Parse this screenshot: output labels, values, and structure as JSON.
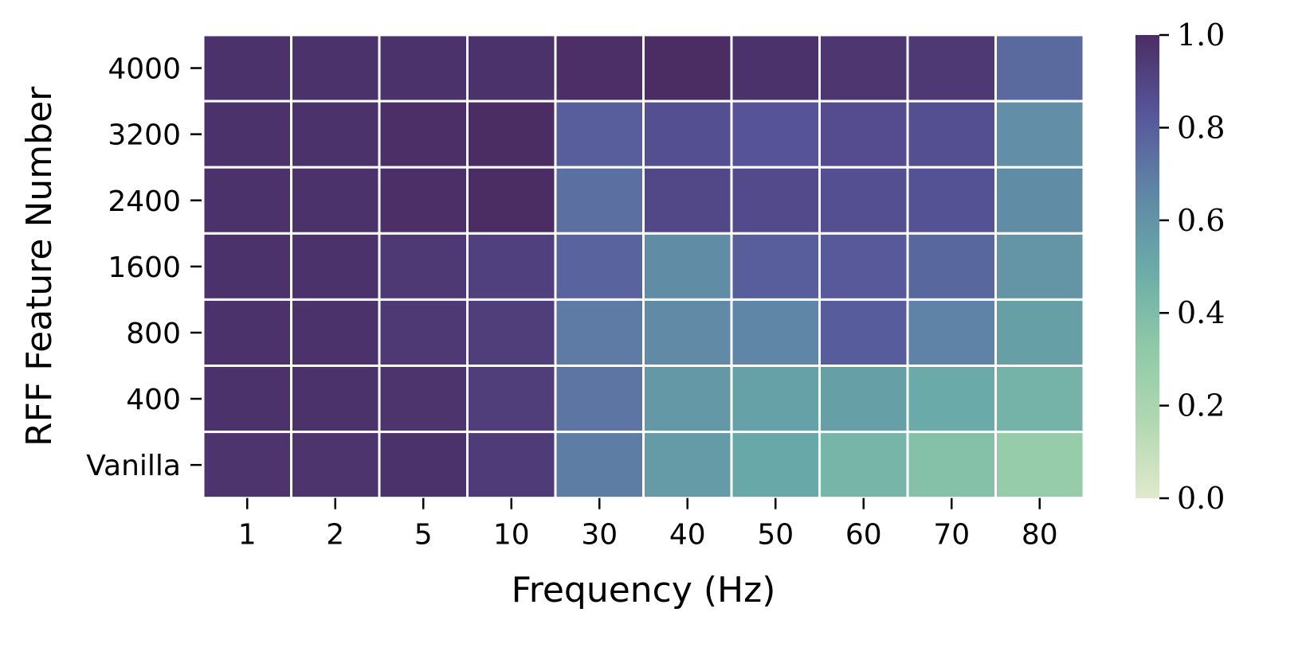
{
  "chart_data": {
    "type": "heatmap",
    "xlabel": "Frequency (Hz)",
    "ylabel": "RFF Feature Number",
    "x_categories": [
      "1",
      "2",
      "5",
      "10",
      "30",
      "40",
      "50",
      "60",
      "70",
      "80"
    ],
    "y_categories": [
      "4000",
      "3200",
      "2400",
      "1600",
      "800",
      "400",
      "Vanilla"
    ],
    "values": [
      [
        0.98,
        0.98,
        0.98,
        0.98,
        0.99,
        1.0,
        0.98,
        0.96,
        0.95,
        0.76
      ],
      [
        0.98,
        0.98,
        0.99,
        1.0,
        0.8,
        0.86,
        0.84,
        0.87,
        0.86,
        0.62
      ],
      [
        0.98,
        0.98,
        0.99,
        1.0,
        0.74,
        0.89,
        0.88,
        0.86,
        0.85,
        0.63
      ],
      [
        0.98,
        0.98,
        0.95,
        0.92,
        0.78,
        0.63,
        0.8,
        0.82,
        0.77,
        0.59
      ],
      [
        0.98,
        0.98,
        0.95,
        0.93,
        0.7,
        0.64,
        0.66,
        0.81,
        0.67,
        0.55
      ],
      [
        0.98,
        0.98,
        0.97,
        0.93,
        0.72,
        0.58,
        0.54,
        0.55,
        0.5,
        0.45
      ],
      [
        0.97,
        0.97,
        0.98,
        0.94,
        0.69,
        0.57,
        0.51,
        0.44,
        0.37,
        0.29
      ]
    ],
    "colorbar": {
      "min": 0.0,
      "max": 1.0,
      "ticks": [
        "0.0",
        "0.2",
        "0.4",
        "0.6",
        "0.8",
        "1.0"
      ],
      "colors": [
        "#e1e9cd",
        "#b0d8b0",
        "#8dc8a8",
        "#6aaaa8",
        "#5f84a6",
        "#56559a",
        "#4b2d63"
      ]
    }
  }
}
